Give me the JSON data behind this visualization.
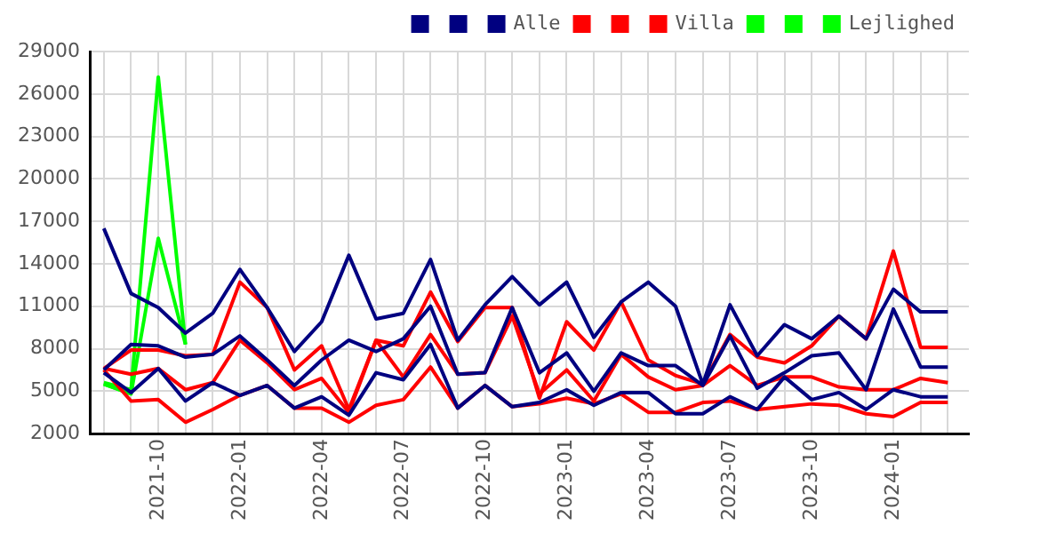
{
  "chart_data": {
    "type": "line",
    "legend": "top right",
    "grid": true,
    "marker": "none",
    "line_style": "solid",
    "x": [
      "2021-08",
      "2021-09",
      "2021-10",
      "2021-11",
      "2021-12",
      "2022-01",
      "2022-02",
      "2022-03",
      "2022-04",
      "2022-05",
      "2022-06",
      "2022-07",
      "2022-08",
      "2022-09",
      "2022-10",
      "2022-11",
      "2022-12",
      "2023-01",
      "2023-02",
      "2023-03",
      "2023-04",
      "2023-05",
      "2023-06",
      "2023-07",
      "2023-08",
      "2023-09",
      "2023-10",
      "2023-11",
      "2023-12",
      "2024-01",
      "2024-02",
      "2024-03"
    ],
    "xlim": [
      "2021-07-17",
      "2024-03-25"
    ],
    "xticks": [
      {
        "value": "2021-08",
        "label": null
      },
      {
        "value": "2021-09",
        "label": null
      },
      {
        "value": "2021-10",
        "label": "2021-10"
      },
      {
        "value": "2021-11",
        "label": null
      },
      {
        "value": "2021-12",
        "label": null
      },
      {
        "value": "2022-01",
        "label": "2022-01"
      },
      {
        "value": "2022-02",
        "label": null
      },
      {
        "value": "2022-03",
        "label": null
      },
      {
        "value": "2022-04",
        "label": "2022-04"
      },
      {
        "value": "2022-05",
        "label": null
      },
      {
        "value": "2022-06",
        "label": null
      },
      {
        "value": "2022-07",
        "label": "2022-07"
      },
      {
        "value": "2022-08",
        "label": null
      },
      {
        "value": "2022-09",
        "label": null
      },
      {
        "value": "2022-10",
        "label": "2022-10"
      },
      {
        "value": "2022-11",
        "label": null
      },
      {
        "value": "2022-12",
        "label": null
      },
      {
        "value": "2023-01",
        "label": "2023-01"
      },
      {
        "value": "2023-02",
        "label": null
      },
      {
        "value": "2023-03",
        "label": null
      },
      {
        "value": "2023-04",
        "label": "2023-04"
      },
      {
        "value": "2023-05",
        "label": null
      },
      {
        "value": "2023-06",
        "label": null
      },
      {
        "value": "2023-07",
        "label": "2023-07"
      },
      {
        "value": "2023-08",
        "label": null
      },
      {
        "value": "2023-09",
        "label": null
      },
      {
        "value": "2023-10",
        "label": "2023-10"
      },
      {
        "value": "2023-11",
        "label": null
      },
      {
        "value": "2023-12",
        "label": null
      },
      {
        "value": "2024-01",
        "label": "2024-01"
      },
      {
        "value": "2024-02",
        "label": null
      },
      {
        "value": "2024-03",
        "label": null
      }
    ],
    "ylim": [
      2000,
      29000
    ],
    "yticks": [
      2000,
      5000,
      8000,
      11000,
      14000,
      17000,
      20000,
      23000,
      26000,
      29000
    ],
    "series": [
      {
        "color": "#000080",
        "values": [
          16500,
          11900,
          10900,
          9100,
          10500,
          13600,
          10900,
          7800,
          9900,
          14600,
          10100,
          10500,
          14300,
          8600,
          11100,
          13100,
          11100,
          12700,
          8800,
          11300,
          12700,
          11000,
          5500,
          11100,
          7500,
          9700,
          8700,
          10300,
          8700,
          12200,
          10600,
          10600
        ]
      },
      {
        "color": "#000080",
        "values": [
          6500,
          8300,
          8200,
          7400,
          7600,
          8900,
          7200,
          5400,
          7200,
          8600,
          7800,
          8700,
          11000,
          6200,
          6300,
          10900,
          6300,
          7700,
          5000,
          7700,
          6800,
          6800,
          5400,
          8900,
          5200,
          6300,
          7500,
          7700,
          5100,
          10800,
          6700,
          6700
        ]
      },
      {
        "name": "Alle",
        "color": "#000080",
        "values": [
          6300,
          4900,
          6600,
          4300,
          5600,
          4700,
          5400,
          3800,
          4600,
          3300,
          6300,
          5800,
          8300,
          3800,
          5400,
          3900,
          4200,
          5100,
          4000,
          4900,
          4900,
          3400,
          3400,
          4600,
          3700,
          6000,
          4400,
          4900,
          3700,
          5100,
          4600,
          4600
        ]
      },
      {
        "color": "#ff0000",
        "values": [
          6600,
          7900,
          7900,
          7500,
          7600,
          12700,
          10900,
          6500,
          8200,
          3700,
          8600,
          8200,
          12000,
          8500,
          10900,
          10900,
          4500,
          9900,
          7900,
          11300,
          7200,
          6100,
          5500,
          9000,
          7400,
          7000,
          8200,
          10300,
          8700,
          14900,
          8100,
          8100
        ]
      },
      {
        "color": "#ff0000",
        "values": [
          6600,
          6200,
          6600,
          5100,
          5600,
          8600,
          7000,
          5100,
          5900,
          3500,
          8600,
          6000,
          9000,
          6200,
          6300,
          10300,
          4800,
          6500,
          4300,
          7600,
          6000,
          5100,
          5400,
          6800,
          5400,
          6000,
          6000,
          5300,
          5100,
          5100,
          5900,
          5600
        ]
      },
      {
        "name": "Villa",
        "color": "#ff0000",
        "values": [
          6500,
          4300,
          4400,
          2800,
          3700,
          4700,
          5400,
          3800,
          3800,
          2800,
          4000,
          4400,
          6700,
          3800,
          5400,
          3900,
          4100,
          4500,
          4100,
          4800,
          3500,
          3500,
          4200,
          4300,
          3700,
          3900,
          4100,
          4000,
          3400,
          3200,
          4200,
          4200
        ]
      },
      {
        "color": "#00ff00",
        "values": [
          5600,
          5100,
          27200,
          8300,
          null,
          null,
          null,
          null,
          null,
          null,
          null,
          null,
          null,
          null,
          null,
          null,
          null,
          null,
          null,
          null,
          null,
          null,
          null,
          null,
          null,
          null,
          null,
          null,
          null,
          null,
          null,
          null
        ]
      },
      {
        "color": "#00ff00",
        "values": [
          5500,
          4800,
          15800,
          8300,
          null,
          null,
          null,
          null,
          null,
          null,
          null,
          null,
          null,
          null,
          null,
          null,
          null,
          null,
          null,
          null,
          null,
          null,
          null,
          null,
          null,
          null,
          null,
          null,
          null,
          null,
          null,
          null
        ]
      },
      {
        "name": "Lejlighed",
        "color": "#00ff00",
        "values": [
          5500,
          4800,
          null,
          null,
          null,
          null,
          null,
          null,
          null,
          null,
          null,
          null,
          null,
          null,
          null,
          null,
          null,
          null,
          null,
          null,
          null,
          null,
          null,
          null,
          null,
          null,
          null,
          null,
          null,
          null,
          null,
          null
        ]
      }
    ]
  }
}
